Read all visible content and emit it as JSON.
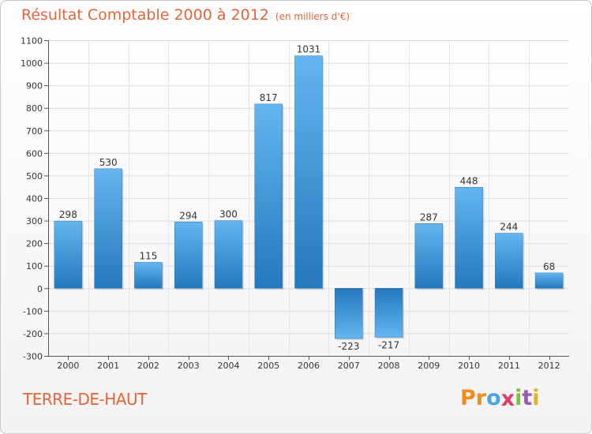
{
  "header": {
    "title": "Résultat Comptable 2000 à 2012",
    "subtitle": "(en milliers d'€)"
  },
  "footer": {
    "town": "TERRE-DE-HAUT",
    "logo_letters": [
      "P",
      "r",
      "o",
      "x",
      "i",
      "t",
      "i"
    ],
    "logo_colors": [
      "#f08c1e",
      "#f08c1e",
      "#4aa6e0",
      "#e23b6a",
      "#7fbf3f",
      "#9b59b6",
      "#e0b21c"
    ]
  },
  "colors": {
    "title": "#e5643a",
    "bar_light": "#5aaeea",
    "bar_dark": "#1f6fb3",
    "grid": "#d9d9d9"
  },
  "chart_data": {
    "type": "bar",
    "title": "Résultat Comptable 2000 à 2012",
    "subtitle": "(en milliers d'€)",
    "categories": [
      "2000",
      "2001",
      "2002",
      "2003",
      "2004",
      "2005",
      "2006",
      "2007",
      "2008",
      "2009",
      "2010",
      "2011",
      "2012"
    ],
    "values": [
      298,
      530,
      115,
      294,
      300,
      817,
      1031,
      -223,
      -217,
      287,
      448,
      244,
      68
    ],
    "labels": [
      "298",
      "530",
      "115",
      "294",
      "300",
      "817",
      "1031",
      "-223",
      "-217",
      "287",
      "448",
      "244",
      "68"
    ],
    "yticks": [
      1100,
      1000,
      900,
      800,
      700,
      600,
      500,
      400,
      300,
      200,
      100,
      0,
      -100,
      -200,
      -300
    ],
    "ylim": [
      -300,
      1100
    ],
    "xlabel": "",
    "ylabel": "",
    "grid": true
  }
}
